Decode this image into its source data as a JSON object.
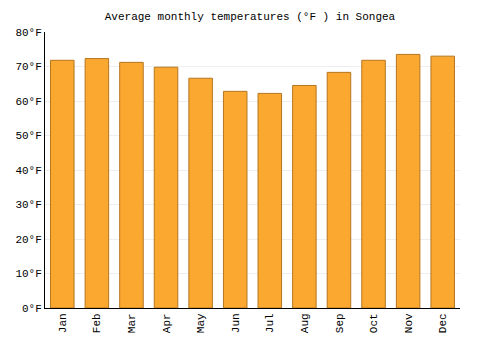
{
  "chart_data": {
    "type": "bar",
    "title": "Average monthly temperatures (°F ) in Songea",
    "categories": [
      "Jan",
      "Feb",
      "Mar",
      "Apr",
      "May",
      "Jun",
      "Jul",
      "Aug",
      "Sep",
      "Oct",
      "Nov",
      "Dec"
    ],
    "values": [
      71.8,
      72.3,
      71.2,
      69.8,
      66.6,
      62.8,
      62.2,
      64.5,
      68.3,
      71.8,
      73.5,
      73.0
    ],
    "color": "#fba830",
    "ylim": [
      0,
      80
    ],
    "yticks": [
      {
        "value": 0,
        "label": "0°F"
      },
      {
        "value": 10,
        "label": "10°F"
      },
      {
        "value": 20,
        "label": "20°F"
      },
      {
        "value": 30,
        "label": "30°F"
      },
      {
        "value": 40,
        "label": "40°F"
      },
      {
        "value": 50,
        "label": "50°F"
      },
      {
        "value": 60,
        "label": "60°F"
      },
      {
        "value": 70,
        "label": "70°F"
      },
      {
        "value": 80,
        "label": "80°F"
      }
    ],
    "grid": true
  }
}
